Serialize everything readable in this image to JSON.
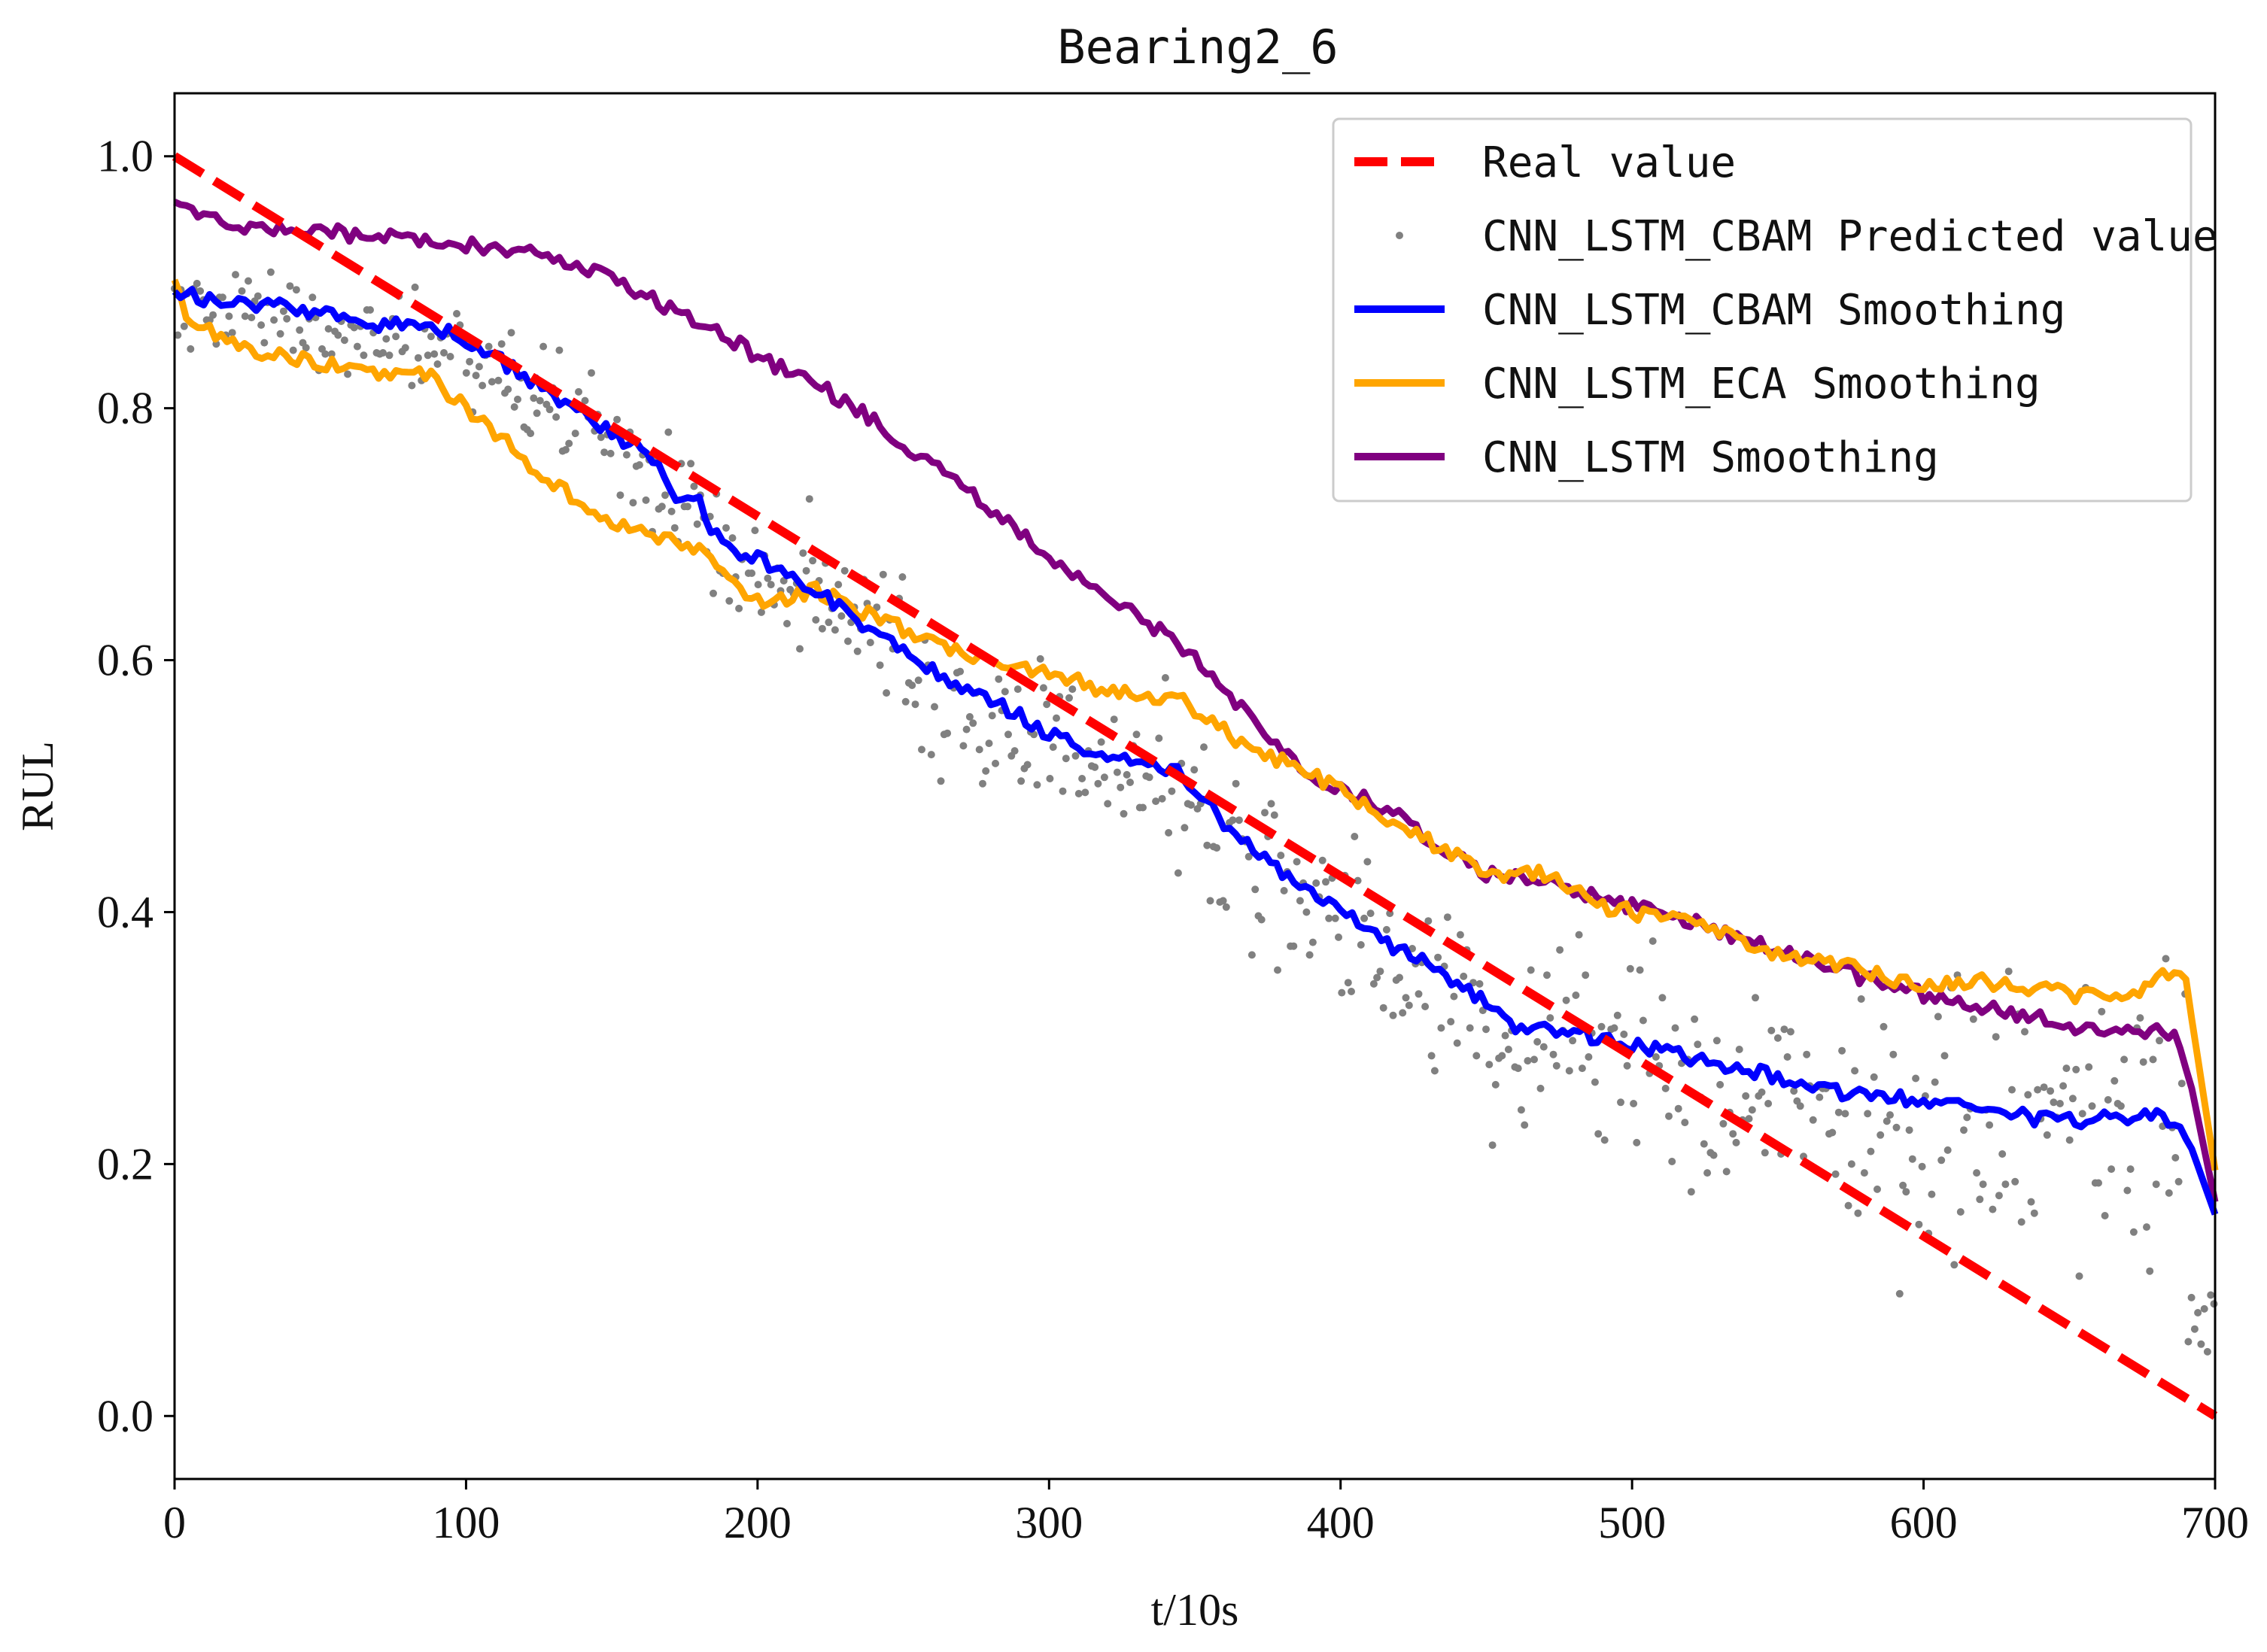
{
  "chart_data": {
    "type": "line",
    "title": "Bearing2_6",
    "xlabel": "t/10s",
    "ylabel": "RUL",
    "xlim": [
      0,
      700
    ],
    "ylim": [
      -0.05,
      1.05
    ],
    "xticks": [
      0,
      100,
      200,
      300,
      400,
      500,
      600,
      700
    ],
    "yticks": [
      0.0,
      0.2,
      0.4,
      0.6,
      0.8,
      1.0
    ],
    "ytick_labels": [
      "0.0",
      "0.2",
      "0.4",
      "0.6",
      "0.8",
      "1.0"
    ],
    "grid": false,
    "legend_position": "top-right",
    "series": [
      {
        "name": "Real value",
        "style": "dashed",
        "color": "#ff0000",
        "x": [
          0,
          700
        ],
        "y": [
          1.0,
          0.0
        ]
      },
      {
        "name": "CNN_LSTM_CBAM Predicted value",
        "style": "scatter",
        "color": "#808080",
        "x": [],
        "y": []
      },
      {
        "name": "CNN_LSTM_CBAM Smoothing",
        "style": "line",
        "color": "#0000ff",
        "x": [
          0,
          20,
          40,
          60,
          80,
          95,
          110,
          130,
          150,
          165,
          170,
          180,
          185,
          195,
          210,
          220,
          235,
          250,
          270,
          290,
          300,
          320,
          345,
          360,
          380,
          400,
          420,
          440,
          460,
          480,
          500,
          520,
          540,
          560,
          580,
          600,
          620,
          640,
          660,
          680,
          690,
          700
        ],
        "y": [
          0.89,
          0.885,
          0.88,
          0.87,
          0.865,
          0.86,
          0.84,
          0.81,
          0.78,
          0.76,
          0.73,
          0.73,
          0.7,
          0.685,
          0.67,
          0.655,
          0.63,
          0.605,
          0.58,
          0.555,
          0.54,
          0.525,
          0.51,
          0.47,
          0.43,
          0.4,
          0.37,
          0.345,
          0.31,
          0.305,
          0.295,
          0.285,
          0.275,
          0.26,
          0.255,
          0.25,
          0.245,
          0.235,
          0.235,
          0.24,
          0.225,
          0.16
        ]
      },
      {
        "name": "CNN_LSTM_ECA Smoothing",
        "style": "line",
        "color": "#ffa500",
        "x": [
          0,
          5,
          20,
          40,
          60,
          75,
          85,
          100,
          115,
          130,
          150,
          165,
          180,
          195,
          205,
          220,
          240,
          260,
          280,
          300,
          320,
          345,
          365,
          390,
          420,
          450,
          470,
          490,
          510,
          530,
          550,
          570,
          600,
          620,
          650,
          670,
          678,
          685,
          690,
          700
        ],
        "y": [
          0.9,
          0.87,
          0.85,
          0.84,
          0.83,
          0.825,
          0.83,
          0.8,
          0.77,
          0.74,
          0.71,
          0.7,
          0.69,
          0.655,
          0.645,
          0.655,
          0.635,
          0.615,
          0.6,
          0.59,
          0.575,
          0.57,
          0.535,
          0.51,
          0.47,
          0.43,
          0.43,
          0.405,
          0.395,
          0.385,
          0.365,
          0.36,
          0.34,
          0.345,
          0.335,
          0.33,
          0.34,
          0.355,
          0.345,
          0.195
        ]
      },
      {
        "name": "CNN_LSTM Smoothing",
        "style": "line",
        "color": "#800080",
        "x": [
          0,
          20,
          50,
          80,
          100,
          130,
          150,
          165,
          185,
          200,
          220,
          240,
          260,
          280,
          300,
          320,
          340,
          355,
          370,
          390,
          410,
          430,
          450,
          470,
          490,
          510,
          530,
          550,
          570,
          590,
          610,
          630,
          650,
          670,
          686,
          692,
          700
        ],
        "y": [
          0.96,
          0.945,
          0.94,
          0.935,
          0.93,
          0.92,
          0.905,
          0.885,
          0.865,
          0.84,
          0.82,
          0.79,
          0.755,
          0.72,
          0.68,
          0.65,
          0.62,
          0.59,
          0.55,
          0.505,
          0.49,
          0.46,
          0.43,
          0.425,
          0.41,
          0.4,
          0.385,
          0.37,
          0.355,
          0.34,
          0.33,
          0.32,
          0.31,
          0.305,
          0.305,
          0.26,
          0.17
        ]
      }
    ]
  }
}
